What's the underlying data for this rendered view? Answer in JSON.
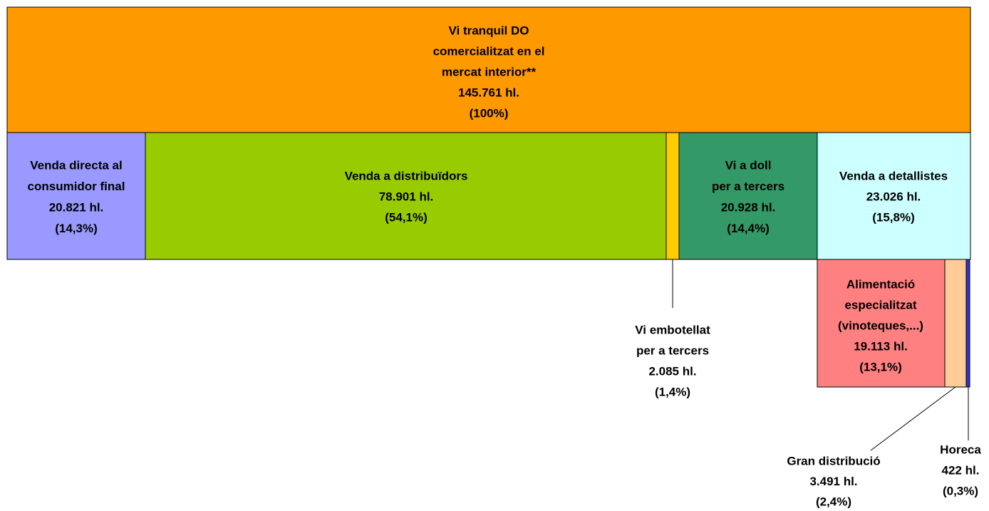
{
  "nodes": [
    {
      "lines": [
        "Vi tranquil DO",
        "comercialitzat en el",
        "mercat interior**",
        "145.761 hl.",
        "(100%)"
      ]
    },
    {
      "lines": [
        "Venda directa al",
        "consumidor final",
        "20.821 hl.",
        "(14,3%)"
      ]
    },
    {
      "lines": [
        "Venda a distribuïdors",
        "78.901 hl.",
        "(54,1%)"
      ]
    },
    {
      "lines": [
        "Vi a doll",
        "per a tercers",
        "20.928 hl.",
        "(14,4%)"
      ]
    },
    {
      "lines": [
        "Venda a detallistes",
        "23.026 hl.",
        "(15,8%)"
      ]
    },
    {
      "lines": [
        "Vi embotellat",
        "per a tercers",
        "2.085 hl.",
        "(1,4%)"
      ]
    },
    {
      "lines": [
        "Alimentació",
        "especialitzat",
        "(vinoteques,...)",
        "19.113 hl.",
        "(13,1%)"
      ]
    },
    {
      "lines": [
        "Gran distribució",
        "3.491 hl.",
        "(2,4%)"
      ]
    },
    {
      "lines": [
        "Horeca",
        "422 hl.",
        "(0,3%)"
      ]
    }
  ]
}
